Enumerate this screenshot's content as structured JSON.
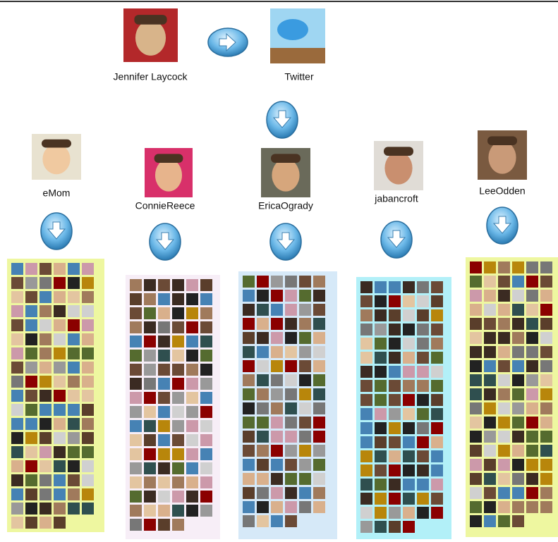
{
  "source": {
    "label": "Jennifer Laycock"
  },
  "network": {
    "label": "Twitter"
  },
  "users": [
    {
      "label": "eMom"
    },
    {
      "label": "ConnieReece"
    },
    {
      "label": "EricaOgrady"
    },
    {
      "label": "jabancroft"
    },
    {
      "label": "LeeOdden"
    }
  ]
}
